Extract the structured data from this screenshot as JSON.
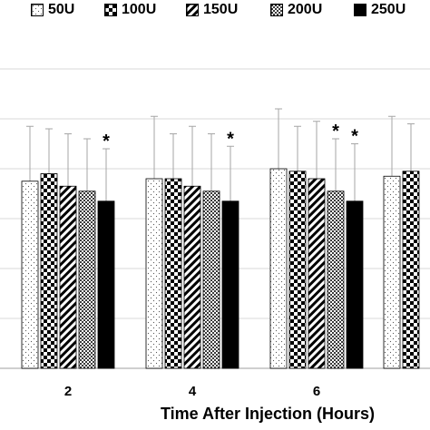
{
  "chart_data": {
    "type": "bar",
    "xlabel": "Time After Injection (Hours)",
    "ylabel": "",
    "categories": [
      "2",
      "4",
      "6",
      ""
    ],
    "legend_position": "top",
    "grid": true,
    "ylim": [
      0,
      6
    ],
    "series": [
      {
        "name": "50U",
        "pattern": "dots",
        "values": [
          3.75,
          3.8,
          4.0,
          3.85
        ],
        "errors": [
          1.1,
          1.25,
          1.2,
          1.2
        ]
      },
      {
        "name": "100U",
        "pattern": "checker",
        "values": [
          3.9,
          3.8,
          3.95,
          3.95
        ],
        "errors": [
          0.9,
          0.9,
          0.9,
          0.95
        ]
      },
      {
        "name": "150U",
        "pattern": "diagonal",
        "values": [
          3.65,
          3.65,
          3.8,
          null
        ],
        "errors": [
          1.05,
          1.2,
          1.15,
          null
        ]
      },
      {
        "name": "200U",
        "pattern": "fine-checker",
        "values": [
          3.55,
          3.55,
          3.55,
          null
        ],
        "errors": [
          1.05,
          1.15,
          1.05,
          null
        ]
      },
      {
        "name": "250U",
        "pattern": "solid",
        "values": [
          3.35,
          3.35,
          3.35,
          null
        ],
        "errors": [
          1.05,
          1.1,
          1.15,
          null
        ]
      }
    ],
    "annotations": [
      {
        "category": "2",
        "series": "250U",
        "text": "*"
      },
      {
        "category": "4",
        "series": "250U",
        "text": "*"
      },
      {
        "category": "6",
        "series": "200U",
        "text": "*"
      },
      {
        "category": "6",
        "series": "250U",
        "text": "*"
      }
    ],
    "colors": {
      "axis": "#bfbfbf",
      "grid": "#d9d9d9",
      "bar_stroke": "#000000",
      "error_bar": "#a6a6a6"
    }
  }
}
